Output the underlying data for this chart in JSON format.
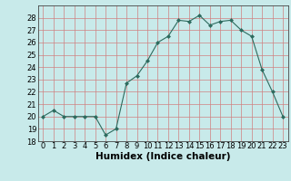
{
  "x": [
    0,
    1,
    2,
    3,
    4,
    5,
    6,
    7,
    8,
    9,
    10,
    11,
    12,
    13,
    14,
    15,
    16,
    17,
    18,
    19,
    20,
    21,
    22,
    23
  ],
  "y": [
    20,
    20.5,
    20,
    20,
    20,
    20,
    18.5,
    19,
    22.7,
    23.3,
    24.5,
    26,
    26.5,
    27.8,
    27.7,
    28.2,
    27.4,
    27.7,
    27.8,
    27,
    26.5,
    23.8,
    22,
    20
  ],
  "line_color": "#2d6b5e",
  "marker": "D",
  "marker_size": 2.0,
  "bg_color": "#c8eaea",
  "grid_color": "#d08080",
  "xlabel": "Humidex (Indice chaleur)",
  "xlim": [
    -0.5,
    23.5
  ],
  "ylim": [
    18,
    29
  ],
  "yticks": [
    18,
    19,
    20,
    21,
    22,
    23,
    24,
    25,
    26,
    27,
    28
  ],
  "xticks": [
    0,
    1,
    2,
    3,
    4,
    5,
    6,
    7,
    8,
    9,
    10,
    11,
    12,
    13,
    14,
    15,
    16,
    17,
    18,
    19,
    20,
    21,
    22,
    23
  ],
  "xtick_labels": [
    "0",
    "1",
    "2",
    "3",
    "4",
    "5",
    "6",
    "7",
    "8",
    "9",
    "10",
    "11",
    "12",
    "13",
    "14",
    "15",
    "16",
    "17",
    "18",
    "19",
    "20",
    "21",
    "22",
    "23"
  ],
  "xlabel_fontsize": 7.5,
  "tick_fontsize": 6.0
}
